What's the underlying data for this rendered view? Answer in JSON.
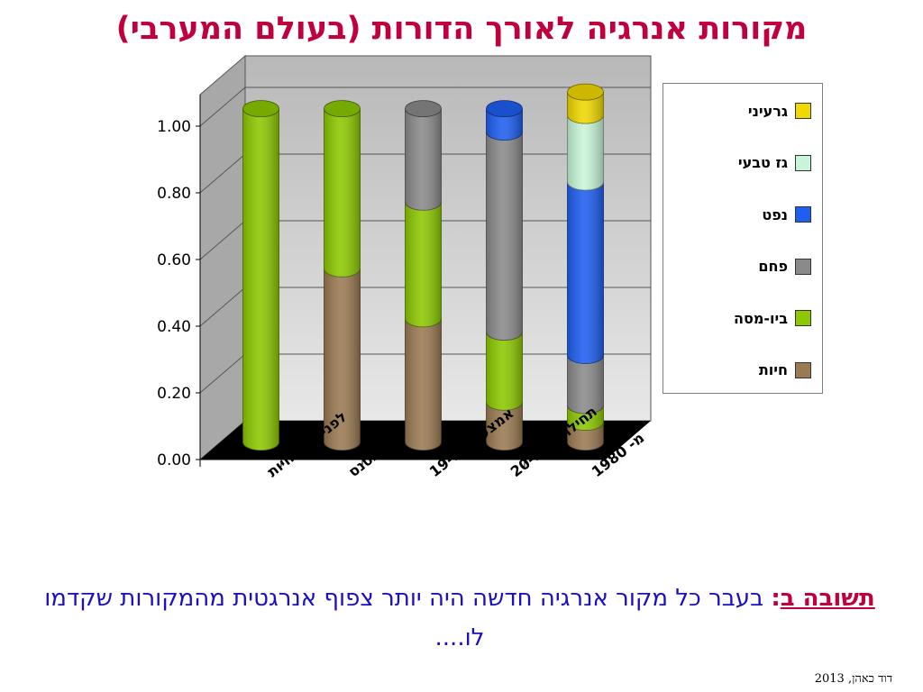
{
  "title": "מקורות אנרגיה לאורך הדורות (בעולם המערבי)",
  "answer": {
    "label": "תשובה ב",
    "colon": ":",
    "text": " בעבר כל מקור אנרגיה חדשה היה יותר צפוף אנרגטית מהמקורות שקדמו לו...."
  },
  "credit": "דוד כאהן, 2013",
  "chart_data": {
    "type": "bar",
    "stacked": true,
    "style": "3d-cylinder",
    "categories": [
      "לפני ביות חיות",
      "רנסנס",
      "אמצע מאה-19",
      "תחילת מאה-20",
      "מ- 1980"
    ],
    "yticks": [
      "0.00",
      "0.20",
      "0.40",
      "0.60",
      "0.80",
      "1.00"
    ],
    "ylim": [
      0,
      1
    ],
    "grid": true,
    "legend_position": "right",
    "series": [
      {
        "name": "חיות",
        "color": "#9a7a52",
        "values": [
          0,
          0.52,
          0.37,
          0.12,
          0.06
        ]
      },
      {
        "name": "ביו-מסה",
        "color": "#8cc800",
        "values": [
          1.0,
          0.48,
          0.35,
          0.21,
          0.05
        ]
      },
      {
        "name": "פחם",
        "color": "#8a8a8a",
        "values": [
          0,
          0,
          0.28,
          0.6,
          0.15
        ]
      },
      {
        "name": "נפט",
        "color": "#1e5ef0",
        "values": [
          0,
          0,
          0,
          0.07,
          0.52
        ]
      },
      {
        "name": "גז טבעי",
        "color": "#c8f5d8",
        "values": [
          0,
          0,
          0,
          0,
          0.2
        ]
      },
      {
        "name": "גרעיני",
        "color": "#f0d800",
        "values": [
          0,
          0,
          0,
          0,
          0.07
        ]
      }
    ]
  }
}
